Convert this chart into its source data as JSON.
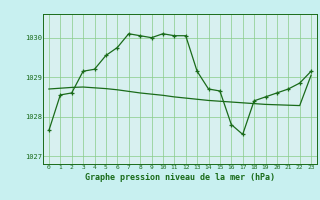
{
  "title": "Graphe pression niveau de la mer (hPa)",
  "bg_color": "#c8f0f0",
  "plot_bg_color": "#d8f0f0",
  "line_color": "#1a6b1a",
  "grid_color": "#88cc88",
  "ylim": [
    1026.8,
    1030.6
  ],
  "yticks": [
    1027,
    1028,
    1029,
    1030
  ],
  "x_ticks": [
    0,
    1,
    2,
    3,
    4,
    5,
    6,
    7,
    8,
    9,
    10,
    11,
    12,
    13,
    14,
    15,
    16,
    17,
    18,
    19,
    20,
    21,
    22,
    23
  ],
  "series1_y": [
    1027.65,
    1028.55,
    1028.6,
    1029.15,
    1029.2,
    1029.55,
    1029.75,
    1030.1,
    1030.05,
    1030.0,
    1030.1,
    1030.05,
    1030.05,
    1029.15,
    1028.7,
    1028.65,
    1027.8,
    1027.55,
    1028.4,
    1028.5,
    1028.6,
    1028.7,
    1028.85,
    1029.15
  ],
  "series2_y": [
    1028.7,
    1028.72,
    1028.74,
    1028.75,
    1028.73,
    1028.71,
    1028.68,
    1028.64,
    1028.6,
    1028.57,
    1028.54,
    1028.5,
    1028.47,
    1028.44,
    1028.41,
    1028.39,
    1028.37,
    1028.35,
    1028.33,
    1028.31,
    1028.3,
    1028.29,
    1028.28,
    1029.05
  ]
}
